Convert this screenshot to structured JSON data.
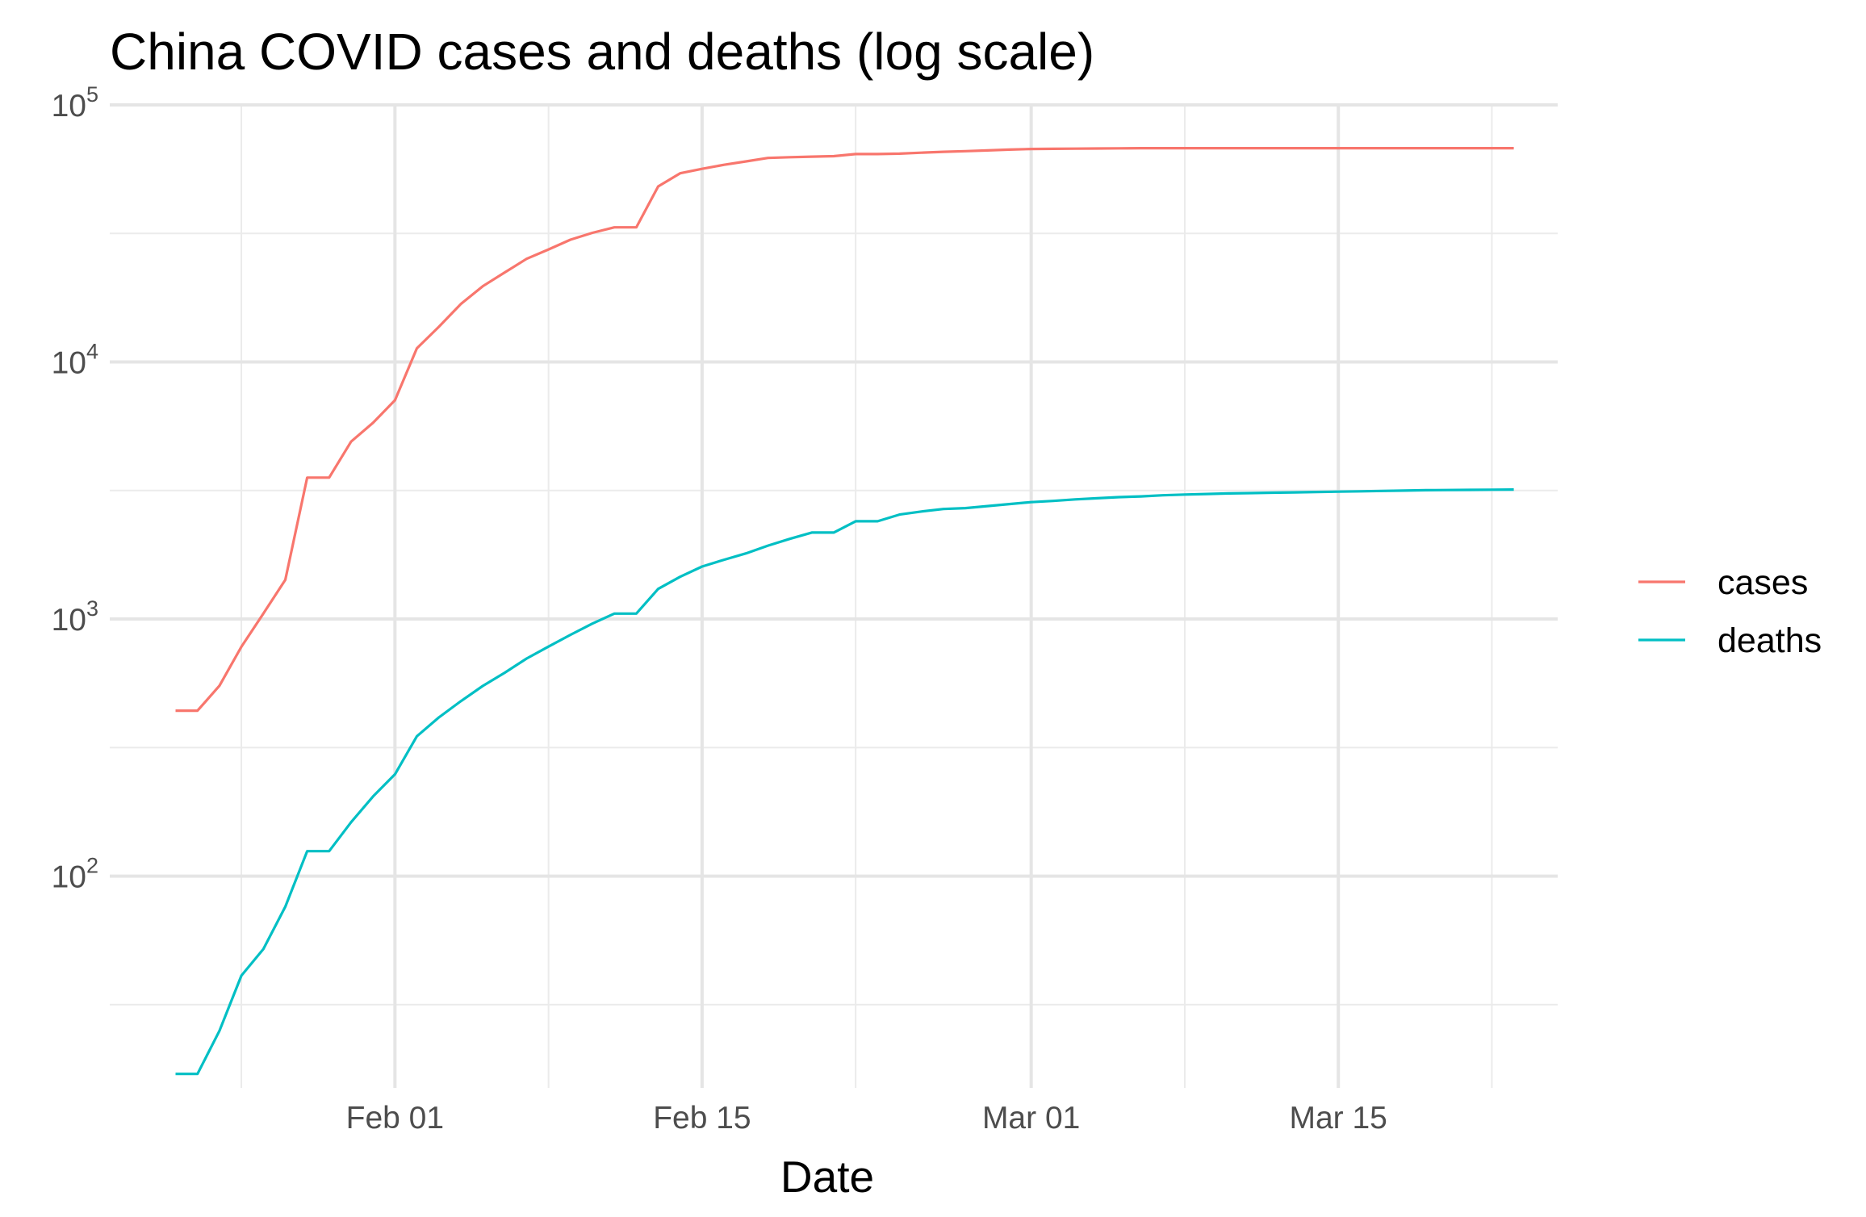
{
  "chart_data": {
    "type": "line",
    "title": "China COVID cases and deaths (log scale)",
    "xlabel": "Date",
    "ylabel": "",
    "yscale": "log10",
    "ylim": [
      15,
      100000
    ],
    "xlim": [
      "2020-01-19",
      "2020-03-25"
    ],
    "x_ticks": [
      {
        "date": "2020-02-01",
        "label": "Feb 01"
      },
      {
        "date": "2020-02-15",
        "label": "Feb 15"
      },
      {
        "date": "2020-03-01",
        "label": "Mar 01"
      },
      {
        "date": "2020-03-15",
        "label": "Mar 15"
      }
    ],
    "x_minor_ticks": [
      "2020-01-25",
      "2020-02-08",
      "2020-02-22",
      "2020-03-08",
      "2020-03-22"
    ],
    "y_ticks": [
      {
        "value": 100,
        "base": "10",
        "exp": "2"
      },
      {
        "value": 1000,
        "base": "10",
        "exp": "3"
      },
      {
        "value": 10000,
        "base": "10",
        "exp": "4"
      },
      {
        "value": 100000,
        "base": "10",
        "exp": "5"
      }
    ],
    "y_minor_ticks": [
      31.6,
      316,
      3162,
      31623
    ],
    "grid": true,
    "legend_position": "right",
    "x": [
      "2020-01-22",
      "2020-01-23",
      "2020-01-24",
      "2020-01-25",
      "2020-01-26",
      "2020-01-27",
      "2020-01-28",
      "2020-01-29",
      "2020-01-30",
      "2020-01-31",
      "2020-02-01",
      "2020-02-02",
      "2020-02-03",
      "2020-02-04",
      "2020-02-05",
      "2020-02-06",
      "2020-02-07",
      "2020-02-08",
      "2020-02-09",
      "2020-02-10",
      "2020-02-11",
      "2020-02-12",
      "2020-02-13",
      "2020-02-14",
      "2020-02-15",
      "2020-02-16",
      "2020-02-17",
      "2020-02-18",
      "2020-02-19",
      "2020-02-20",
      "2020-02-21",
      "2020-02-22",
      "2020-02-23",
      "2020-02-24",
      "2020-02-25",
      "2020-02-26",
      "2020-02-27",
      "2020-02-28",
      "2020-02-29",
      "2020-03-01",
      "2020-03-02",
      "2020-03-03",
      "2020-03-04",
      "2020-03-05",
      "2020-03-06",
      "2020-03-07",
      "2020-03-08",
      "2020-03-09",
      "2020-03-10",
      "2020-03-11",
      "2020-03-12",
      "2020-03-13",
      "2020-03-14",
      "2020-03-15",
      "2020-03-16",
      "2020-03-17",
      "2020-03-18",
      "2020-03-19",
      "2020-03-20",
      "2020-03-21",
      "2020-03-22",
      "2020-03-23"
    ],
    "series": [
      {
        "name": "cases",
        "color": "#F8766D",
        "values": [
          440,
          440,
          550,
          780,
          1050,
          1420,
          3550,
          3550,
          4900,
          5800,
          7100,
          11300,
          13700,
          16800,
          19700,
          22300,
          25200,
          27400,
          29900,
          31800,
          33400,
          33400,
          48200,
          54200,
          56400,
          58500,
          60300,
          62200,
          62600,
          62900,
          63200,
          64400,
          64400,
          64600,
          65200,
          65700,
          66100,
          66500,
          67000,
          67400,
          67500,
          67600,
          67700,
          67800,
          67900,
          67900,
          67900,
          67900,
          67900,
          67900,
          67900,
          67900,
          67900,
          67900,
          67900,
          67900,
          67900,
          67900,
          67900,
          67900,
          67900,
          67900
        ]
      },
      {
        "name": "deaths",
        "color": "#00BFC4",
        "values": [
          17,
          17,
          25,
          41,
          52,
          76,
          125,
          125,
          162,
          204,
          249,
          350,
          414,
          479,
          549,
          618,
          702,
          781,
          868,
          960,
          1050,
          1050,
          1310,
          1460,
          1600,
          1700,
          1800,
          1930,
          2050,
          2170,
          2170,
          2400,
          2400,
          2550,
          2620,
          2680,
          2700,
          2750,
          2800,
          2850,
          2880,
          2920,
          2950,
          2980,
          3000,
          3030,
          3050,
          3065,
          3080,
          3090,
          3100,
          3110,
          3120,
          3130,
          3140,
          3150,
          3160,
          3170,
          3175,
          3180,
          3185,
          3190
        ]
      }
    ]
  }
}
